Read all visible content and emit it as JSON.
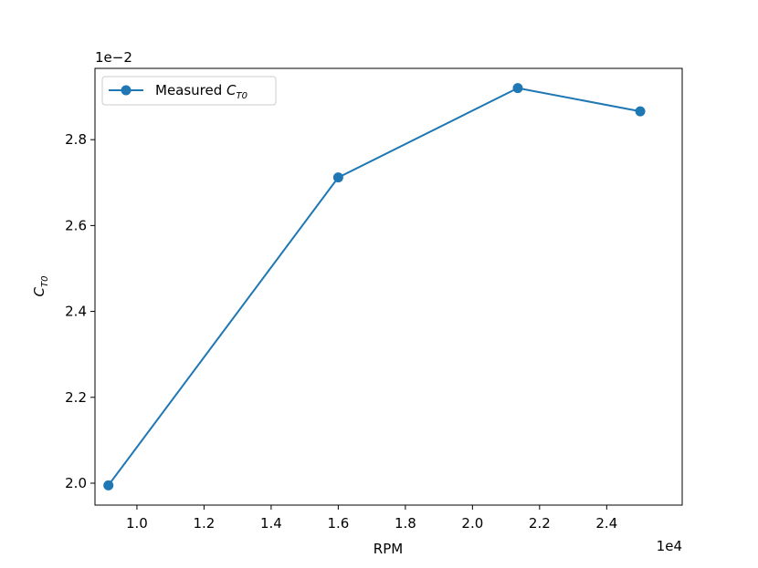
{
  "chart_data": {
    "type": "line",
    "x": [
      9150,
      16000,
      21350,
      25000
    ],
    "series": [
      {
        "name": "Measured C_T0",
        "values": [
          0.01995,
          0.02712,
          0.0292,
          0.02866
        ],
        "color": "#1f77b4",
        "marker": "circle"
      }
    ],
    "xlabel": "RPM",
    "ylabel": "C_T0",
    "x_ticks": [
      10000,
      12000,
      14000,
      16000,
      18000,
      20000,
      22000,
      24000
    ],
    "x_tick_labels": [
      "1.0",
      "1.2",
      "1.4",
      "1.6",
      "1.8",
      "2.0",
      "2.2",
      "2.4"
    ],
    "y_ticks": [
      0.02,
      0.022,
      0.024,
      0.026,
      0.028
    ],
    "y_tick_labels": [
      "2.0",
      "2.2",
      "2.4",
      "2.6",
      "2.8"
    ],
    "x_offset_label": "1e4",
    "y_offset_label": "1e−2",
    "xlim": [
      8750,
      26250
    ],
    "ylim": [
      0.01949,
      0.02966
    ],
    "legend": {
      "position": "upper-left",
      "label_main": "Measured ",
      "label_var": "C",
      "label_sub": "T0"
    },
    "grid": false
  }
}
